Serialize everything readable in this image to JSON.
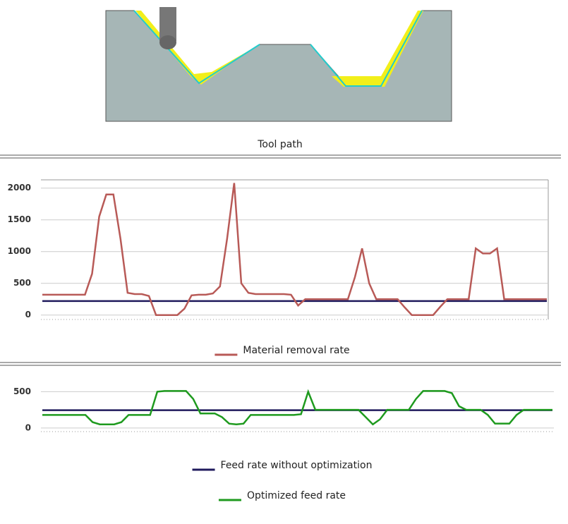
{
  "caption": "Tool path",
  "chart_data": [
    {
      "type": "line",
      "ylim": [
        -70,
        2130
      ],
      "yticks": [
        0,
        500,
        1000,
        1500,
        2000
      ],
      "grid": true,
      "series": [
        {
          "color": "#1f1a5c",
          "values": [
            220,
            220,
            220,
            220,
            220,
            220,
            220,
            220,
            220,
            220,
            220,
            220,
            220,
            220,
            220,
            220,
            220,
            220,
            220,
            220,
            220,
            220,
            220,
            220,
            220,
            220,
            220,
            220,
            220,
            220,
            220,
            220,
            220,
            220,
            220,
            220,
            220,
            220,
            220,
            220,
            220,
            220,
            220,
            220,
            220,
            220,
            220,
            220,
            220,
            220,
            220,
            220,
            220,
            220,
            220,
            220,
            220,
            220,
            220,
            220,
            220,
            220,
            220,
            220,
            220,
            220,
            220,
            220,
            220,
            220,
            220,
            220
          ]
        },
        {
          "name": "Material removal rate",
          "color": "#b85a57",
          "values": [
            320,
            320,
            320,
            320,
            320,
            320,
            320,
            650,
            1550,
            1900,
            1900,
            1200,
            350,
            330,
            330,
            300,
            0,
            0,
            0,
            0,
            100,
            310,
            320,
            320,
            340,
            450,
            1200,
            2080,
            500,
            350,
            330,
            330,
            330,
            330,
            330,
            320,
            150,
            250,
            250,
            250,
            250,
            250,
            250,
            250,
            600,
            1050,
            500,
            250,
            250,
            250,
            250,
            120,
            0,
            0,
            0,
            0,
            130,
            250,
            250,
            250,
            250,
            1050,
            970,
            970,
            1050,
            250,
            250,
            250,
            250,
            250,
            250,
            250
          ]
        }
      ]
    },
    {
      "type": "line",
      "ylim": [
        -50,
        650
      ],
      "yticks": [
        0,
        500
      ],
      "grid": true,
      "series": [
        {
          "name": "Feed rate without optimization",
          "color": "#1f1a5c",
          "values": [
            245,
            245,
            245,
            245,
            245,
            245,
            245,
            245,
            245,
            245,
            245,
            245,
            245,
            245,
            245,
            245,
            245,
            245,
            245,
            245,
            245,
            245,
            245,
            245,
            245,
            245,
            245,
            245,
            245,
            245,
            245,
            245,
            245,
            245,
            245,
            245,
            245,
            245,
            245,
            245,
            245,
            245,
            245,
            245,
            245,
            245,
            245,
            245,
            245,
            245,
            245,
            245,
            245,
            245,
            245,
            245,
            245,
            245,
            245,
            245,
            245,
            245,
            245,
            245,
            245,
            245,
            245,
            245,
            245,
            245,
            245,
            245
          ]
        },
        {
          "name": "Optimized feed rate",
          "color": "#1e9a1e",
          "values": [
            180,
            180,
            180,
            180,
            180,
            180,
            180,
            80,
            50,
            50,
            50,
            80,
            180,
            180,
            180,
            180,
            500,
            510,
            510,
            510,
            510,
            400,
            200,
            200,
            200,
            150,
            60,
            50,
            60,
            180,
            180,
            180,
            180,
            180,
            180,
            180,
            190,
            500,
            250,
            250,
            250,
            250,
            250,
            250,
            250,
            150,
            50,
            120,
            250,
            250,
            250,
            250,
            400,
            510,
            510,
            510,
            510,
            480,
            300,
            250,
            250,
            250,
            180,
            60,
            60,
            60,
            180,
            250,
            250,
            250,
            250,
            250
          ]
        }
      ]
    }
  ]
}
